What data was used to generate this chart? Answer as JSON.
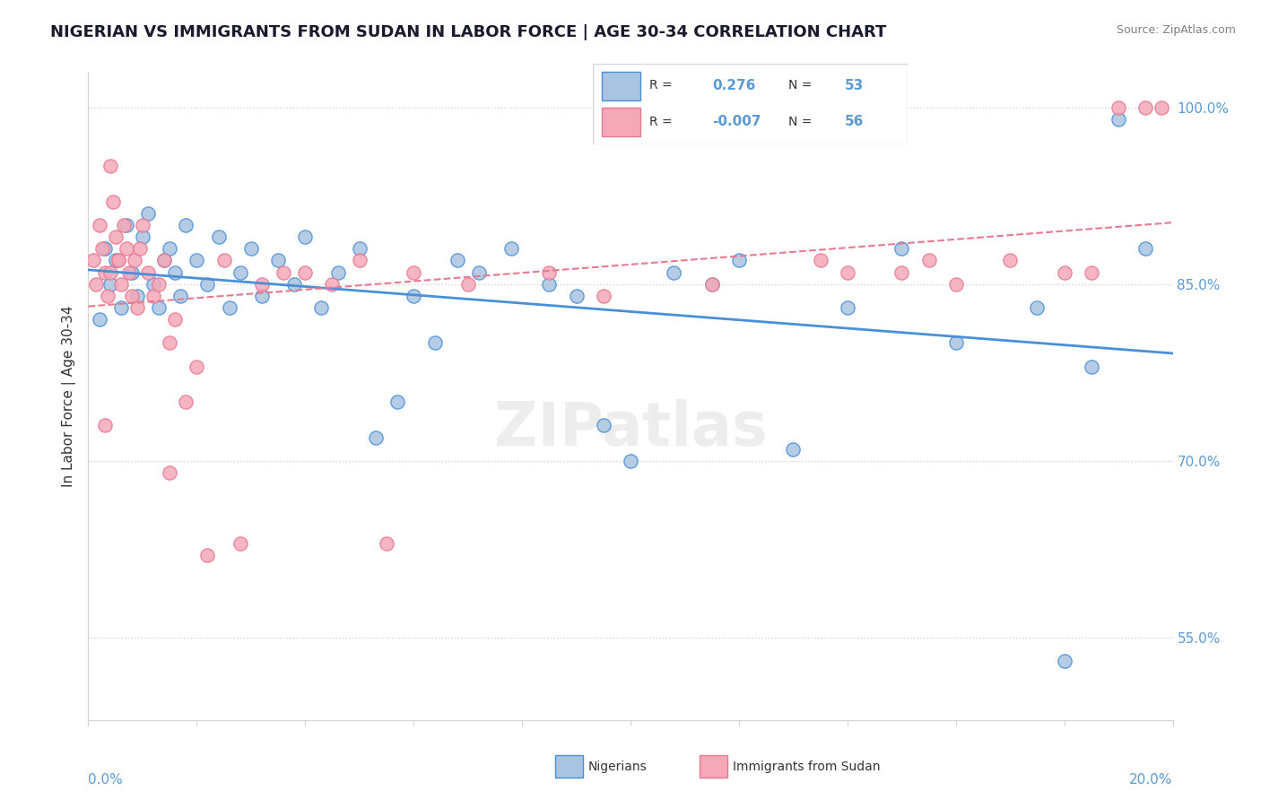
{
  "title": "NIGERIAN VS IMMIGRANTS FROM SUDAN IN LABOR FORCE | AGE 30-34 CORRELATION CHART",
  "source": "Source: ZipAtlas.com",
  "ylabel": "In Labor Force | Age 30-34",
  "xmin": 0.0,
  "xmax": 20.0,
  "ymin": 48.0,
  "ymax": 103.0,
  "yticks": [
    55.0,
    70.0,
    85.0,
    100.0
  ],
  "r_blue": 0.276,
  "n_blue": 53,
  "r_pink": -0.007,
  "n_pink": 56,
  "legend_labels": [
    "Nigerians",
    "Immigrants from Sudan"
  ],
  "blue_color": "#a8c4e0",
  "pink_color": "#f4a8b8",
  "blue_line_color": "#4a90d9",
  "pink_line_color": "#e87a90",
  "title_color": "#1a1a2e",
  "axis_color": "#5b9bd5",
  "blue_scatter": {
    "x": [
      0.2,
      0.3,
      0.4,
      0.5,
      0.6,
      0.7,
      0.8,
      0.9,
      1.0,
      1.1,
      1.2,
      1.3,
      1.4,
      1.5,
      1.6,
      1.7,
      1.8,
      2.0,
      2.2,
      2.4,
      2.6,
      2.8,
      3.0,
      3.2,
      3.5,
      3.8,
      4.0,
      4.3,
      4.6,
      5.0,
      5.3,
      5.7,
      6.0,
      6.4,
      6.8,
      7.2,
      7.8,
      8.5,
      9.0,
      9.5,
      10.0,
      10.8,
      11.5,
      12.0,
      13.0,
      14.0,
      15.0,
      16.0,
      17.5,
      18.0,
      18.5,
      19.0,
      19.5
    ],
    "y": [
      82,
      88,
      85,
      87,
      83,
      90,
      86,
      84,
      89,
      91,
      85,
      83,
      87,
      88,
      86,
      84,
      90,
      87,
      85,
      89,
      83,
      86,
      88,
      84,
      87,
      85,
      89,
      83,
      86,
      88,
      72,
      75,
      84,
      80,
      87,
      86,
      88,
      85,
      84,
      73,
      70,
      86,
      85,
      87,
      71,
      83,
      88,
      80,
      83,
      53,
      78,
      99,
      88
    ]
  },
  "pink_scatter": {
    "x": [
      0.1,
      0.15,
      0.2,
      0.25,
      0.3,
      0.35,
      0.4,
      0.45,
      0.5,
      0.55,
      0.6,
      0.65,
      0.7,
      0.75,
      0.8,
      0.85,
      0.9,
      0.95,
      1.0,
      1.1,
      1.2,
      1.3,
      1.4,
      1.5,
      1.6,
      1.8,
      2.0,
      2.2,
      2.5,
      2.8,
      3.2,
      3.6,
      4.0,
      4.5,
      5.0,
      5.5,
      6.0,
      7.0,
      8.5,
      9.5,
      11.5,
      13.5,
      14.0,
      15.0,
      15.5,
      16.0,
      17.0,
      18.0,
      18.5,
      19.0,
      19.5,
      19.8,
      0.3,
      0.4,
      0.55,
      1.5
    ],
    "y": [
      87,
      85,
      90,
      88,
      86,
      84,
      95,
      92,
      89,
      87,
      85,
      90,
      88,
      86,
      84,
      87,
      83,
      88,
      90,
      86,
      84,
      85,
      87,
      80,
      82,
      75,
      78,
      62,
      87,
      63,
      85,
      86,
      86,
      85,
      87,
      63,
      86,
      85,
      86,
      84,
      85,
      87,
      86,
      86,
      87,
      85,
      87,
      86,
      86,
      100,
      100,
      100,
      73,
      86,
      87,
      69
    ]
  }
}
